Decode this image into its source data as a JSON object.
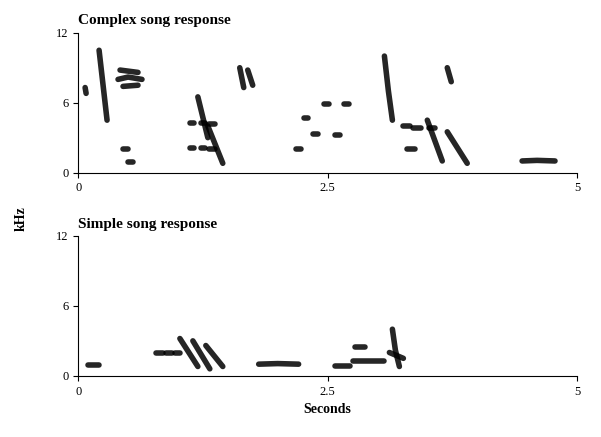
{
  "chart_data": [
    {
      "type": "spectrogram",
      "title": "Complex song response",
      "ylabel": "kHz",
      "xlim": [
        0,
        5
      ],
      "xticks": [
        0,
        2.5,
        5
      ],
      "ylim": [
        0,
        12
      ],
      "yticks": [
        0,
        6,
        12
      ],
      "color": "#000000",
      "elements": [
        {
          "x": [
            0.07,
            0.08
          ],
          "y": [
            7.3,
            6.8
          ]
        },
        {
          "x": [
            0.21,
            0.25,
            0.29
          ],
          "y": [
            10.5,
            7.5,
            4.5
          ]
        },
        {
          "x": [
            0.4,
            0.5,
            0.64
          ],
          "y": [
            8.0,
            8.2,
            8.0
          ]
        },
        {
          "x": [
            0.42,
            0.6
          ],
          "y": [
            8.8,
            8.6
          ]
        },
        {
          "x": [
            0.45,
            0.6
          ],
          "y": [
            7.4,
            7.5
          ]
        },
        {
          "x": [
            0.45,
            0.5
          ],
          "y": [
            2.0,
            2.0
          ]
        },
        {
          "x": [
            0.5,
            0.55
          ],
          "y": [
            0.9,
            0.9
          ]
        },
        {
          "x": [
            1.12,
            1.16
          ],
          "y": [
            4.3,
            4.3
          ]
        },
        {
          "x": [
            1.23,
            1.27
          ],
          "y": [
            4.3,
            4.3
          ]
        },
        {
          "x": [
            1.31,
            1.37
          ],
          "y": [
            4.2,
            4.2
          ]
        },
        {
          "x": [
            1.12,
            1.16
          ],
          "y": [
            2.1,
            2.1
          ]
        },
        {
          "x": [
            1.23,
            1.27
          ],
          "y": [
            2.1,
            2.1
          ]
        },
        {
          "x": [
            1.31,
            1.37
          ],
          "y": [
            2.0,
            2.0
          ]
        },
        {
          "x": [
            1.2,
            1.3
          ],
          "y": [
            6.5,
            3.0
          ]
        },
        {
          "x": [
            1.3,
            1.45
          ],
          "y": [
            4.0,
            0.8
          ]
        },
        {
          "x": [
            1.62,
            1.66
          ],
          "y": [
            9.0,
            7.3
          ]
        },
        {
          "x": [
            1.7,
            1.75
          ],
          "y": [
            8.8,
            7.5
          ]
        },
        {
          "x": [
            2.18,
            2.23
          ],
          "y": [
            2.0,
            2.0
          ]
        },
        {
          "x": [
            2.26,
            2.3
          ],
          "y": [
            4.7,
            4.7
          ]
        },
        {
          "x": [
            2.35,
            2.4
          ],
          "y": [
            3.3,
            3.3
          ]
        },
        {
          "x": [
            2.46,
            2.51
          ],
          "y": [
            5.9,
            5.9
          ]
        },
        {
          "x": [
            2.57,
            2.62
          ],
          "y": [
            3.2,
            3.2
          ]
        },
        {
          "x": [
            2.66,
            2.72
          ],
          "y": [
            5.9,
            5.9
          ]
        },
        {
          "x": [
            3.07,
            3.11,
            3.15
          ],
          "y": [
            10.0,
            7.0,
            4.5
          ]
        },
        {
          "x": [
            3.26,
            3.33
          ],
          "y": [
            4.0,
            4.0
          ]
        },
        {
          "x": [
            3.36,
            3.44
          ],
          "y": [
            3.8,
            3.8
          ]
        },
        {
          "x": [
            3.3,
            3.38
          ],
          "y": [
            2.0,
            2.0
          ]
        },
        {
          "x": [
            3.52,
            3.58
          ],
          "y": [
            3.8,
            3.8
          ]
        },
        {
          "x": [
            3.7,
            3.74
          ],
          "y": [
            9.0,
            7.8
          ]
        },
        {
          "x": [
            3.5,
            3.65
          ],
          "y": [
            4.5,
            1.0
          ]
        },
        {
          "x": [
            3.7,
            3.9
          ],
          "y": [
            3.5,
            0.8
          ]
        },
        {
          "x": [
            4.45,
            4.6,
            4.78
          ],
          "y": [
            1.0,
            1.05,
            1.0
          ]
        }
      ]
    },
    {
      "type": "spectrogram",
      "title": "Simple song response",
      "xlabel": "Seconds",
      "xlim": [
        0,
        5
      ],
      "xticks": [
        0,
        2.5,
        5
      ],
      "ylim": [
        0,
        12
      ],
      "yticks": [
        0,
        6,
        12
      ],
      "color": "#000000",
      "elements": [
        {
          "x": [
            0.1,
            0.21
          ],
          "y": [
            0.9,
            0.9
          ]
        },
        {
          "x": [
            0.78,
            0.85
          ],
          "y": [
            2.0,
            2.0
          ]
        },
        {
          "x": [
            0.88,
            0.94
          ],
          "y": [
            2.0,
            2.0
          ]
        },
        {
          "x": [
            0.97,
            1.02
          ],
          "y": [
            2.0,
            2.0
          ]
        },
        {
          "x": [
            1.02,
            1.2
          ],
          "y": [
            3.2,
            0.8
          ]
        },
        {
          "x": [
            1.15,
            1.32
          ],
          "y": [
            3.0,
            0.6
          ]
        },
        {
          "x": [
            1.28,
            1.45
          ],
          "y": [
            2.6,
            0.8
          ]
        },
        {
          "x": [
            1.81,
            2.0,
            2.21
          ],
          "y": [
            1.0,
            1.05,
            1.0
          ]
        },
        {
          "x": [
            2.57,
            2.73
          ],
          "y": [
            0.8,
            0.8
          ]
        },
        {
          "x": [
            2.76,
            3.07
          ],
          "y": [
            1.3,
            1.3
          ]
        },
        {
          "x": [
            2.78,
            2.88
          ],
          "y": [
            2.5,
            2.5
          ]
        },
        {
          "x": [
            3.15,
            3.18,
            3.22
          ],
          "y": [
            4.0,
            2.2,
            0.8
          ]
        },
        {
          "x": [
            3.12,
            3.26
          ],
          "y": [
            2.0,
            1.5
          ]
        }
      ]
    }
  ]
}
